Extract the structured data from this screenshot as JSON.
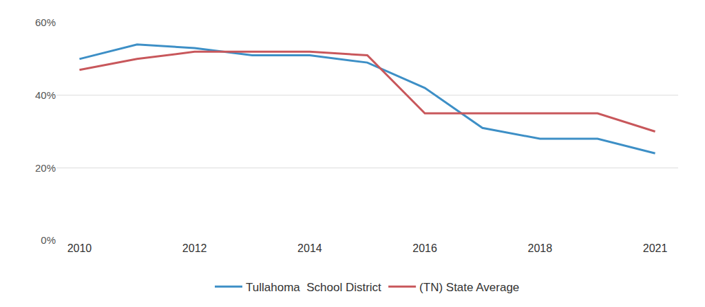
{
  "chart_data": {
    "type": "line",
    "categories": [
      "2010",
      null,
      "2012",
      null,
      "2014",
      null,
      "2016",
      null,
      "2018",
      null,
      "2021"
    ],
    "series": [
      {
        "name": "Tullahoma  School District",
        "color": "#3d8fc6",
        "values": [
          50,
          54,
          53,
          51,
          51,
          49,
          42,
          31,
          28,
          28,
          24
        ]
      },
      {
        "name": "(TN) State Average",
        "color": "#c8575b",
        "values": [
          47,
          50,
          52,
          52,
          52,
          51,
          35,
          35,
          35,
          35,
          30
        ]
      }
    ],
    "ylim": [
      0,
      60
    ],
    "yticks": [
      {
        "value": 0,
        "label": "0%"
      },
      {
        "value": 20,
        "label": "20%"
      },
      {
        "value": 40,
        "label": "40%"
      },
      {
        "value": 60,
        "label": "60%"
      }
    ],
    "grid": true,
    "legend": "bottom"
  }
}
